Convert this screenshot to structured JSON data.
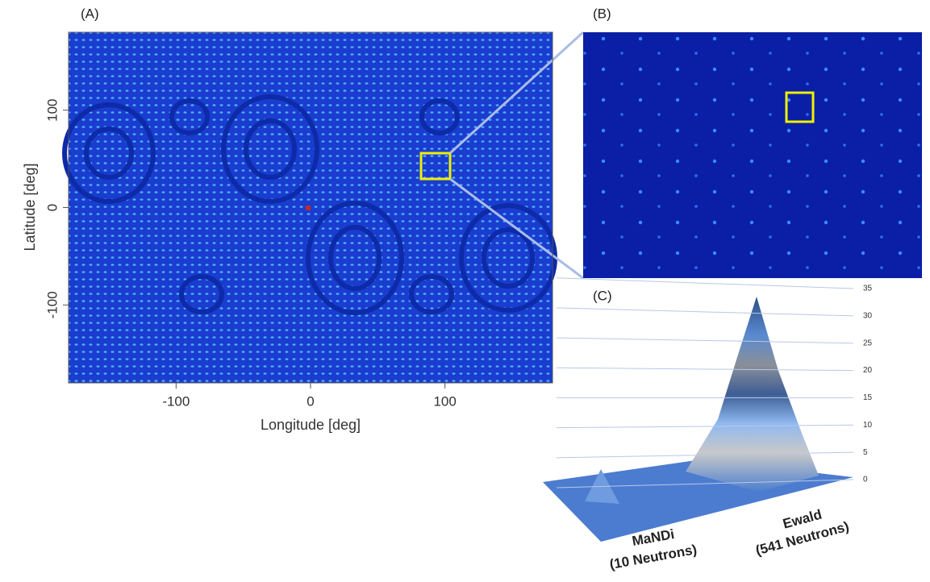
{
  "panel_labels": [
    "(A)",
    "(B)",
    "(C)"
  ],
  "chart_data": [
    {
      "type": "heatmap",
      "x_label": "Longitude [deg]",
      "y_label": "Latitude [deg]",
      "xlim": [
        -180,
        180
      ],
      "ylim": [
        -180,
        180
      ],
      "xticks": [
        -100,
        0,
        100
      ],
      "yticks": [
        -100,
        0,
        100
      ]
    },
    {
      "type": "surface",
      "zlim": [
        0,
        35
      ],
      "zticks": [
        0,
        5,
        10,
        15,
        20,
        25,
        30,
        35
      ],
      "annotations": [
        [
          "MaNDi",
          "(10 Neutrons)"
        ],
        [
          "Ewald",
          "(541 Neutrons)"
        ]
      ]
    }
  ]
}
